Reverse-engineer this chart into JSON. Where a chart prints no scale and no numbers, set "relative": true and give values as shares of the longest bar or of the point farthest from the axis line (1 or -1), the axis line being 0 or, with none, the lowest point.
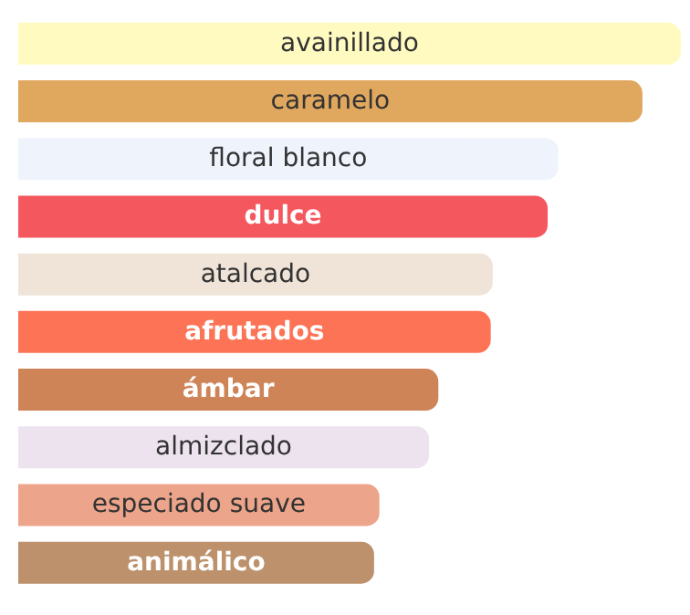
{
  "chart_data": {
    "type": "bar",
    "orientation": "horizontal",
    "relative": true,
    "categories": [
      "avainillado",
      "caramelo",
      "floral blanco",
      "dulce",
      "atalcado",
      "afrutados",
      "ámbar",
      "almizclado",
      "especiado suave",
      "animálico"
    ],
    "values": [
      1,
      0.942,
      0.815,
      0.799,
      0.716,
      0.713,
      0.634,
      0.62,
      0.545,
      0.537
    ],
    "colors": [
      "#fffbc0",
      "#e0a75e",
      "#eef3fc",
      "#f4575e",
      "#f0e4d8",
      "#fc7356",
      "#cf8458",
      "#ede3ef",
      "#eca58a",
      "#bd916c"
    ],
    "data_labels": false,
    "grid": false,
    "legend": false
  }
}
